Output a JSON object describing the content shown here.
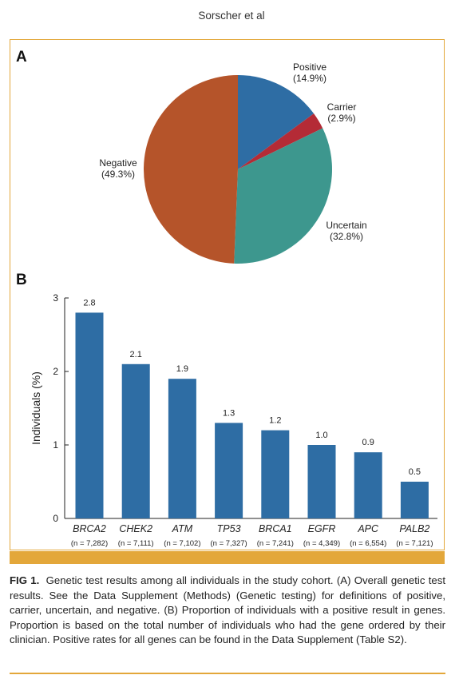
{
  "running_head": "Sorscher et al",
  "panel_a_label": "A",
  "panel_b_label": "B",
  "caption": {
    "label": "FIG 1.",
    "text": "Genetic test results among all individuals in the study cohort. (A) Overall genetic test results. See the Data Supplement (Methods) (Genetic testing) for definitions of positive, carrier, uncertain, and negative. (B) Proportion of individuals with a positive result in genes. Proportion is based on the total number of individuals who had the gene ordered by their clinician. Positive rates for all genes can be found in the Data Supplement (Table S2)."
  },
  "chart_data": [
    {
      "type": "pie",
      "slices": [
        {
          "label": "Positive",
          "pct_label": "(14.9%)",
          "value": 14.9,
          "color": "#2e6da4"
        },
        {
          "label": "Carrier",
          "pct_label": "(2.9%)",
          "value": 2.9,
          "color": "#b42b36"
        },
        {
          "label": "Uncertain",
          "pct_label": "(32.8%)",
          "value": 32.8,
          "color": "#3d978e"
        },
        {
          "label": "Negative",
          "pct_label": "(49.3%)",
          "value": 49.3,
          "color": "#b5542a"
        }
      ]
    },
    {
      "type": "bar",
      "ylabel": "Individuals (%)",
      "ylim": [
        0,
        3
      ],
      "yticks": [
        "0",
        "1",
        "2",
        "3"
      ],
      "categories": [
        "BRCA2",
        "CHEK2",
        "ATM",
        "TP53",
        "BRCA1",
        "EGFR",
        "APC",
        "PALB2"
      ],
      "n_labels": [
        "(n = 7,282)",
        "(n = 7,111)",
        "(n = 7,102)",
        "(n = 7,327)",
        "(n = 7,241)",
        "(n = 4,349)",
        "(n = 6,554)",
        "(n = 7,121)"
      ],
      "values": [
        2.8,
        2.1,
        1.9,
        1.3,
        1.2,
        1.0,
        0.9,
        0.5
      ],
      "value_labels": [
        "2.8",
        "2.1",
        "1.9",
        "1.3",
        "1.2",
        "1.0",
        "0.9",
        "0.5"
      ],
      "bar_color": "#2e6da4"
    }
  ]
}
